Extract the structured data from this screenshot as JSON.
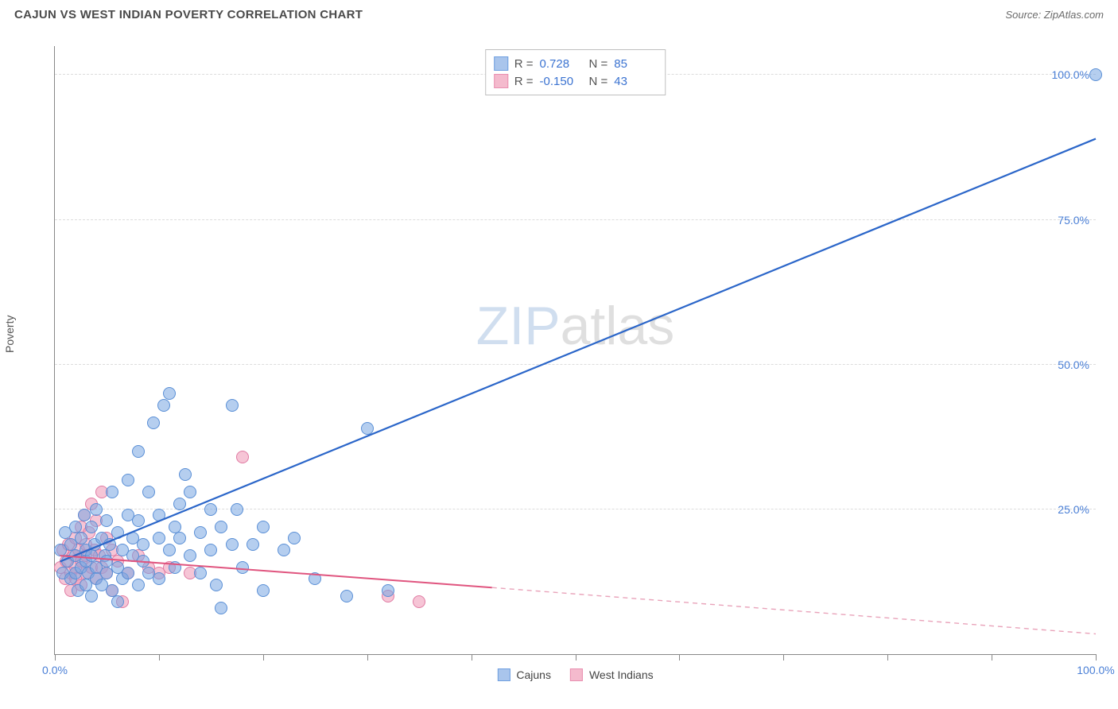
{
  "header": {
    "title": "CAJUN VS WEST INDIAN POVERTY CORRELATION CHART",
    "source": "Source: ZipAtlas.com"
  },
  "axes": {
    "y_label": "Poverty",
    "xlim": [
      0,
      100
    ],
    "ylim": [
      0,
      105
    ],
    "x_ticks": [
      0,
      10,
      20,
      30,
      40,
      50,
      60,
      70,
      80,
      90,
      100
    ],
    "x_tick_labels": {
      "0": "0.0%",
      "100": "100.0%"
    },
    "y_grid": [
      25,
      50,
      75,
      100
    ],
    "y_tick_labels": {
      "25": "25.0%",
      "50": "50.0%",
      "75": "75.0%",
      "100": "100.0%"
    },
    "tick_color": "#888888",
    "grid_color": "#dcdcdc",
    "grid_dash": "4,4",
    "axis_label_color": "#4a7fd6",
    "axis_label_fontsize": 14
  },
  "watermark": {
    "zip": "ZIP",
    "rest": "atlas"
  },
  "legend_top": {
    "rows": [
      {
        "swatch_fill": "#a9c5ec",
        "swatch_border": "#6f9fe0",
        "r_label": "R =",
        "r_value": "0.728",
        "n_label": "N =",
        "n_value": "85"
      },
      {
        "swatch_fill": "#f4bacd",
        "swatch_border": "#e98fb0",
        "r_label": "R =",
        "r_value": "-0.150",
        "n_label": "N =",
        "n_value": "43"
      }
    ]
  },
  "legend_bottom": {
    "items": [
      {
        "swatch_fill": "#a9c5ec",
        "swatch_border": "#6f9fe0",
        "label": "Cajuns"
      },
      {
        "swatch_fill": "#f4bacd",
        "swatch_border": "#e98fb0",
        "label": "West Indians"
      }
    ]
  },
  "series": {
    "cajuns": {
      "color_fill": "rgba(120,165,225,0.55)",
      "color_stroke": "#5a8fd6",
      "marker_radius": 8,
      "points": [
        [
          100,
          100
        ],
        [
          0.5,
          18
        ],
        [
          0.8,
          14
        ],
        [
          1.0,
          21
        ],
        [
          1.2,
          16
        ],
        [
          1.5,
          19
        ],
        [
          1.5,
          13
        ],
        [
          2.0,
          22
        ],
        [
          2.0,
          17
        ],
        [
          2.0,
          14
        ],
        [
          2.2,
          11
        ],
        [
          2.5,
          20
        ],
        [
          2.5,
          15
        ],
        [
          2.8,
          24
        ],
        [
          3.0,
          18
        ],
        [
          3.0,
          12
        ],
        [
          3.0,
          16
        ],
        [
          3.2,
          14
        ],
        [
          3.5,
          22
        ],
        [
          3.5,
          10
        ],
        [
          3.5,
          17
        ],
        [
          3.8,
          19
        ],
        [
          4.0,
          15
        ],
        [
          4.0,
          13
        ],
        [
          4.0,
          25
        ],
        [
          4.5,
          20
        ],
        [
          4.5,
          12
        ],
        [
          4.8,
          17
        ],
        [
          5.0,
          23
        ],
        [
          5.0,
          14
        ],
        [
          5.0,
          16
        ],
        [
          5.3,
          19
        ],
        [
          5.5,
          11
        ],
        [
          5.5,
          28
        ],
        [
          6.0,
          15
        ],
        [
          6.0,
          21
        ],
        [
          6.0,
          9
        ],
        [
          6.5,
          13
        ],
        [
          6.5,
          18
        ],
        [
          7.0,
          24
        ],
        [
          7.0,
          14
        ],
        [
          7.0,
          30
        ],
        [
          7.5,
          17
        ],
        [
          7.5,
          20
        ],
        [
          8.0,
          12
        ],
        [
          8.0,
          23
        ],
        [
          8.0,
          35
        ],
        [
          8.5,
          16
        ],
        [
          8.5,
          19
        ],
        [
          9.0,
          28
        ],
        [
          9.0,
          14
        ],
        [
          9.5,
          40
        ],
        [
          10.0,
          20
        ],
        [
          10.0,
          24
        ],
        [
          10.0,
          13
        ],
        [
          10.5,
          43
        ],
        [
          11.0,
          18
        ],
        [
          11.0,
          45
        ],
        [
          11.5,
          22
        ],
        [
          11.5,
          15
        ],
        [
          12.0,
          26
        ],
        [
          12.0,
          20
        ],
        [
          12.5,
          31
        ],
        [
          13.0,
          17
        ],
        [
          13.0,
          28
        ],
        [
          14.0,
          21
        ],
        [
          14.0,
          14
        ],
        [
          15.0,
          25
        ],
        [
          15.0,
          18
        ],
        [
          15.5,
          12
        ],
        [
          16.0,
          22
        ],
        [
          16.0,
          8
        ],
        [
          17.0,
          19
        ],
        [
          17.0,
          43
        ],
        [
          17.5,
          25
        ],
        [
          18.0,
          15
        ],
        [
          19.0,
          19
        ],
        [
          20.0,
          22
        ],
        [
          20.0,
          11
        ],
        [
          22.0,
          18
        ],
        [
          23.0,
          20
        ],
        [
          25.0,
          13
        ],
        [
          28.0,
          10
        ],
        [
          30.0,
          39
        ],
        [
          32.0,
          11
        ]
      ],
      "trend": {
        "x1": 0.5,
        "y1": 16,
        "x2": 100,
        "y2": 89,
        "color": "#2b66c9",
        "width": 2.2
      }
    },
    "west_indians": {
      "color_fill": "rgba(238,150,180,0.55)",
      "color_stroke": "#e07ba3",
      "marker_radius": 8,
      "points": [
        [
          0.5,
          15
        ],
        [
          0.8,
          18
        ],
        [
          1.0,
          13
        ],
        [
          1.1,
          16
        ],
        [
          1.3,
          19
        ],
        [
          1.5,
          14
        ],
        [
          1.5,
          11
        ],
        [
          1.8,
          17
        ],
        [
          2.0,
          20
        ],
        [
          2.0,
          15
        ],
        [
          2.0,
          13
        ],
        [
          2.3,
          18
        ],
        [
          2.5,
          22
        ],
        [
          2.5,
          16
        ],
        [
          2.5,
          12
        ],
        [
          2.8,
          24
        ],
        [
          3.0,
          19
        ],
        [
          3.0,
          14
        ],
        [
          3.0,
          17
        ],
        [
          3.3,
          21
        ],
        [
          3.5,
          15
        ],
        [
          3.5,
          26
        ],
        [
          3.8,
          18
        ],
        [
          4.0,
          13
        ],
        [
          4.0,
          23
        ],
        [
          4.3,
          17
        ],
        [
          4.5,
          15
        ],
        [
          4.5,
          28
        ],
        [
          5.0,
          20
        ],
        [
          5.0,
          14
        ],
        [
          5.5,
          18
        ],
        [
          5.5,
          11
        ],
        [
          6.0,
          16
        ],
        [
          6.5,
          9
        ],
        [
          7.0,
          14
        ],
        [
          8.0,
          17
        ],
        [
          9.0,
          15
        ],
        [
          10.0,
          14
        ],
        [
          11.0,
          15
        ],
        [
          13.0,
          14
        ],
        [
          18.0,
          34
        ],
        [
          32.0,
          10
        ],
        [
          35.0,
          9
        ]
      ],
      "trend_solid": {
        "x1": 0.5,
        "y1": 17,
        "x2": 42,
        "y2": 11.5,
        "color": "#e0557f",
        "width": 2
      },
      "trend_dash": {
        "x1": 42,
        "y1": 11.5,
        "x2": 100,
        "y2": 3.5,
        "color": "#e9a3ba",
        "width": 1.4,
        "dash": "6,5"
      }
    }
  },
  "style": {
    "background": "#ffffff",
    "title_color": "#4a4a4a",
    "title_fontsize": 15,
    "source_color": "#6b6b6b",
    "source_fontsize": 13
  }
}
